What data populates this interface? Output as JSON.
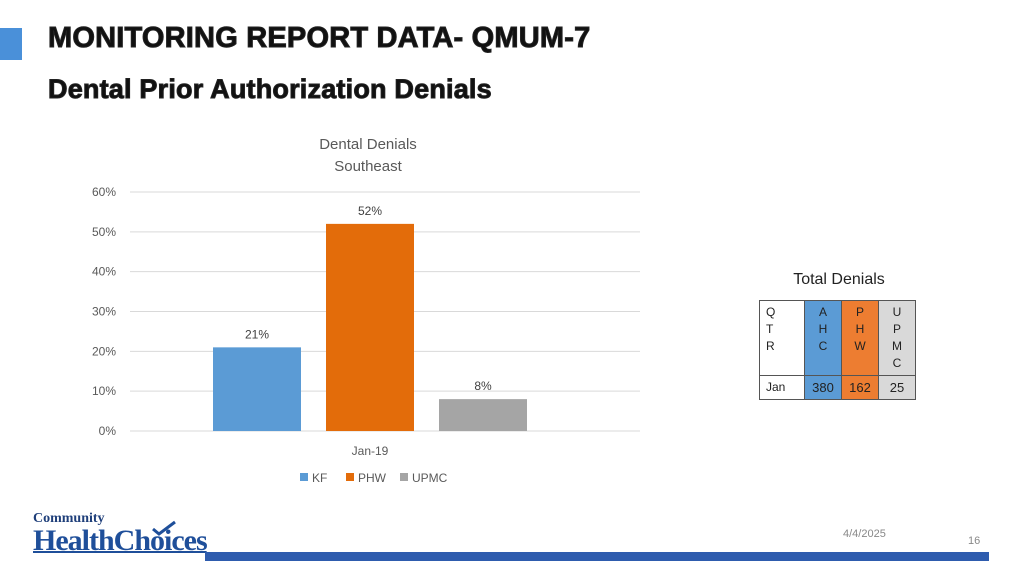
{
  "header": {
    "title": "MONITORING REPORT DATA- QMUM-7",
    "subtitle": "Dental Prior Authorization Denials"
  },
  "chart_data": {
    "type": "bar",
    "title": "Dental Denials",
    "subtitle": "Southeast",
    "categories": [
      "Jan-19"
    ],
    "series": [
      {
        "name": "KF",
        "values": [
          21
        ],
        "label": "21%",
        "color": "#5b9bd5"
      },
      {
        "name": "PHW",
        "values": [
          52
        ],
        "label": "52%",
        "color": "#e36c0a"
      },
      {
        "name": "UPMC",
        "values": [
          8
        ],
        "label": "8%",
        "color": "#a5a5a5"
      }
    ],
    "ylim": [
      0,
      60
    ],
    "yticks": [
      0,
      10,
      20,
      30,
      40,
      50,
      60
    ],
    "ytick_labels": [
      "0%",
      "10%",
      "20%",
      "30%",
      "40%",
      "50%",
      "60%"
    ],
    "grid": true,
    "legend": "bottom"
  },
  "table": {
    "title": "Total Denials",
    "headers": [
      [
        "Q",
        "T",
        "R"
      ],
      [
        "A",
        "H",
        "C"
      ],
      [
        "P",
        "H",
        "W"
      ],
      [
        "U",
        "P",
        "M",
        "C"
      ]
    ],
    "rows": [
      [
        "Jan",
        "380",
        "162",
        "25"
      ]
    ]
  },
  "logo": {
    "line1": "Community",
    "line2": "HealthChoices"
  },
  "footer": {
    "date": "4/4/2025",
    "page": "16"
  }
}
